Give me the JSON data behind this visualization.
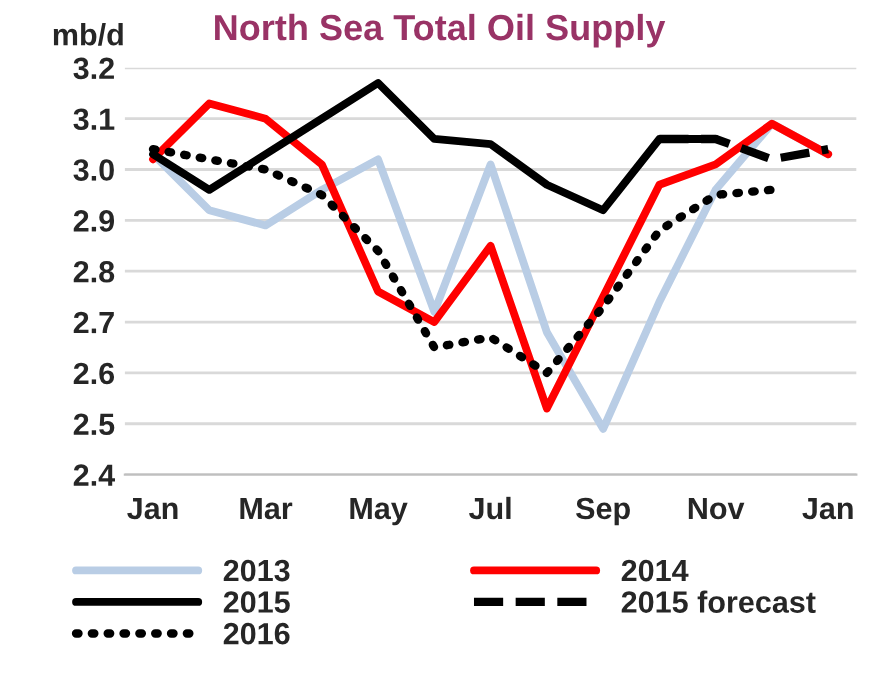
{
  "chart_data": {
    "type": "line",
    "title": "North Sea Total Oil Supply",
    "ylabel": "mb/d",
    "categories": [
      "Jan",
      null,
      "Mar",
      null,
      "May",
      null,
      "Jul",
      null,
      "Sep",
      null,
      "Nov",
      null,
      "Jan"
    ],
    "series": [
      {
        "name": "2013",
        "color": "#b9cde5",
        "values": [
          3.03,
          2.92,
          2.89,
          2.96,
          3.02,
          2.72,
          3.01,
          2.68,
          2.49,
          2.74,
          2.96,
          3.09,
          3.03
        ]
      },
      {
        "name": "2014",
        "color": "#ff0000",
        "values": [
          3.02,
          3.13,
          3.1,
          3.01,
          2.76,
          2.7,
          2.85,
          2.53,
          2.75,
          2.97,
          3.01,
          3.09,
          3.03
        ]
      },
      {
        "name": "2015",
        "color": "#000000",
        "values": [
          3.03,
          2.96,
          3.03,
          3.1,
          3.17,
          3.06,
          3.05,
          2.97,
          2.92,
          3.06,
          3.06,
          null,
          null
        ]
      },
      {
        "name": "2015 forecast",
        "color": "#000000",
        "line_style": "dashed",
        "values": [
          null,
          null,
          null,
          null,
          null,
          null,
          null,
          null,
          null,
          3.06,
          3.06,
          3.02,
          3.04
        ]
      },
      {
        "name": "2016",
        "color": "#000000",
        "line_style": "dotted",
        "values": [
          3.04,
          3.02,
          3.0,
          2.95,
          2.84,
          2.65,
          2.67,
          2.6,
          2.73,
          2.88,
          2.95,
          2.96,
          null
        ]
      }
    ],
    "ylim": [
      2.4,
      3.2
    ],
    "yticks": [
      {
        "value": 2.4,
        "label": "2.4"
      },
      {
        "value": 2.5,
        "label": "2.5"
      },
      {
        "value": 2.6,
        "label": "2.6"
      },
      {
        "value": 2.7,
        "label": "2.7"
      },
      {
        "value": 2.8,
        "label": "2.8"
      },
      {
        "value": 2.9,
        "label": "2.9"
      },
      {
        "value": 3.0,
        "label": "3.0"
      },
      {
        "value": 3.1,
        "label": "3.1"
      },
      {
        "value": 3.2,
        "label": "3.2"
      }
    ],
    "grid": "y",
    "legend": "bottom",
    "line_style": "solid",
    "marker": "none"
  }
}
